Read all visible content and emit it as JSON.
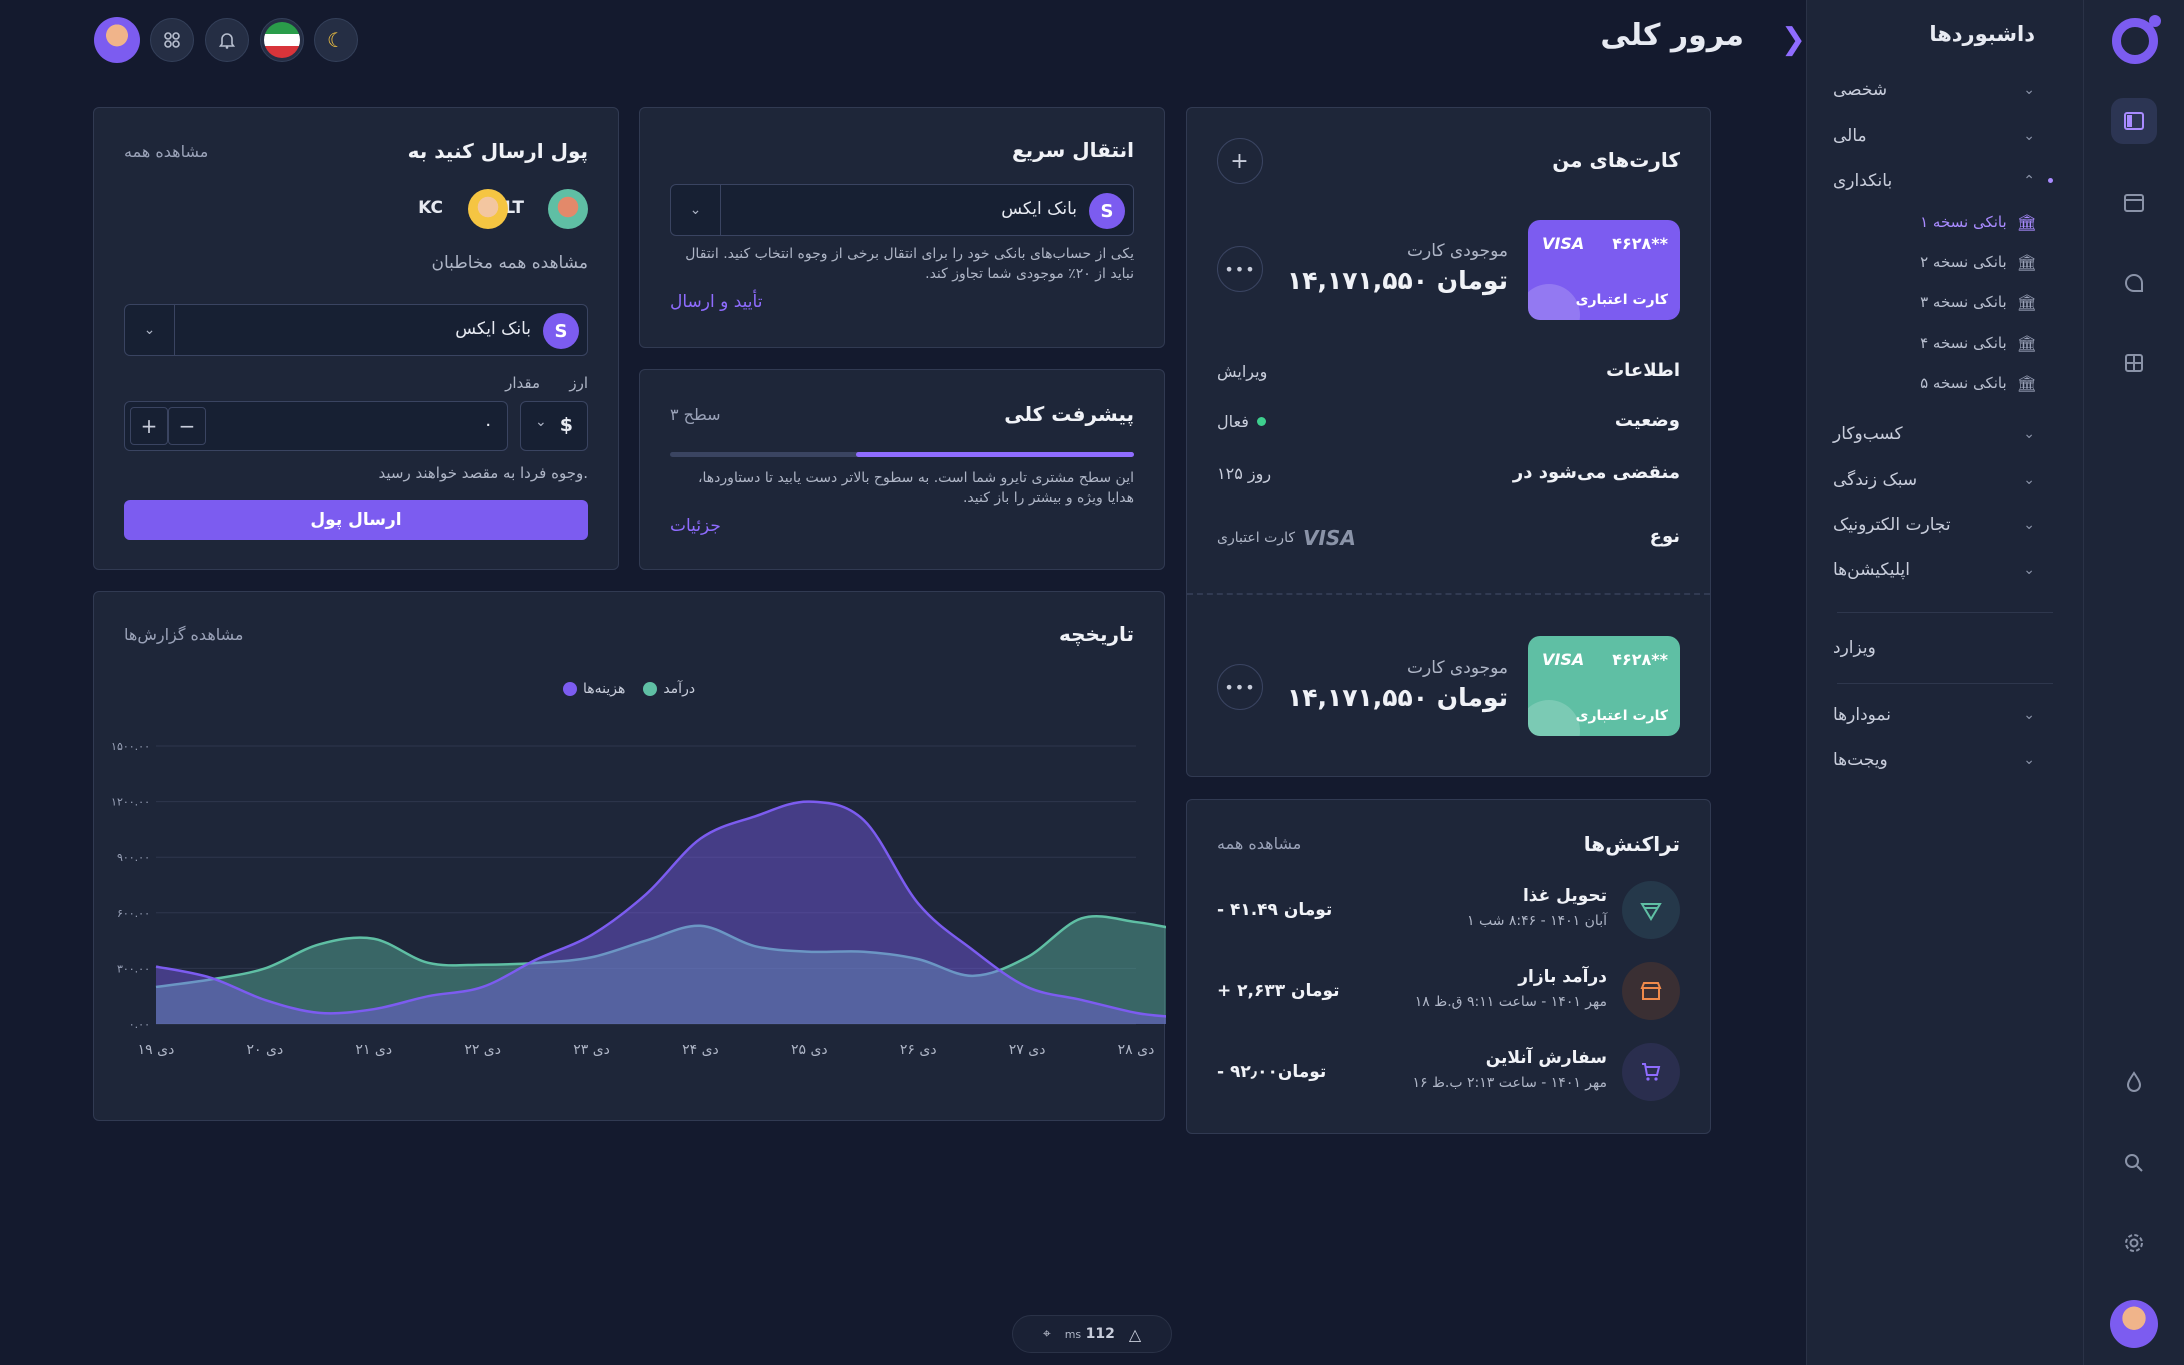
{
  "sidebar": {
    "title": "داشبوردها",
    "items": [
      {
        "label": "شخصی"
      },
      {
        "label": "مالی"
      },
      {
        "label": "بانکداری"
      }
    ],
    "banking_sub": [
      {
        "label": "بانکی نسخه ۱"
      },
      {
        "label": "بانکی نسخه ۲"
      },
      {
        "label": "بانکی نسخه ۳"
      },
      {
        "label": "بانکی نسخه ۴"
      },
      {
        "label": "بانکی نسخه ۵"
      }
    ],
    "items2": [
      {
        "label": "کسب‌وکار"
      },
      {
        "label": "سبک زندگی"
      },
      {
        "label": "تجارت الکترونیک"
      },
      {
        "label": "اپلیکیشن‌ها"
      }
    ],
    "wizard": "ویزارد",
    "charts": "نمودارها",
    "widgets": "ویجت‌ها"
  },
  "header": {
    "title": "مرور کلی"
  },
  "my_cards": {
    "title": "کارت‌های من",
    "cards": [
      {
        "number": "۴۶۲۸**",
        "brand": "VISA",
        "type": "کارت اعتباری",
        "balance_label": "موجودی کارت",
        "balance": "۱۴,۱۷۱,۵۵۰ تومان",
        "color": "#7c5cf0"
      },
      {
        "number": "۴۶۲۸**",
        "brand": "VISA",
        "type": "کارت اعتباری",
        "balance_label": "موجودی کارت",
        "balance": "۱۴,۱۷۱,۵۵۰ تومان",
        "color": "#5fbfa4"
      }
    ],
    "info_label": "اطلاعات",
    "edit": "ویرایش",
    "status_label": "وضعیت",
    "status_value": "فعال",
    "expires_label": "منقضی می‌شود در",
    "expires_value": "۱۲۵ روز",
    "type_label": "نوع",
    "type_value": "کارت اعتباری",
    "type_brand": "VISA"
  },
  "quick_transfer": {
    "title": "انتقال سریع",
    "bank": "بانک ایکس",
    "description": "یکی از حساب‌های بانکی خود را برای انتقال برخی از وجوه انتخاب کنید. انتقال نباید از ۲۰٪ موجودی شما تجاوز کند.",
    "confirm": "تأیید و ارسال"
  },
  "progress": {
    "title": "پیشرفت کلی",
    "level": "سطح ۳",
    "percent": 60,
    "description": "این سطح مشتری تایرو شما است. به سطوح بالاتر دست یابید تا دستاوردها، هدایا ویژه و بیشتر را باز کنید.",
    "details": "جزئیات"
  },
  "send_money": {
    "title": "پول ارسال کنید به",
    "view_all": "مشاهده همه",
    "contacts": [
      "LT",
      "KC"
    ],
    "view_contacts": "مشاهده همه مخاطبان",
    "bank": "بانک ایکس",
    "currency_label": "ارز",
    "currency": "$",
    "amount_label": "مقدار",
    "amount": "۰",
    "note": "وجوه فردا به مقصد خواهند رسید.",
    "button": "ارسال پول"
  },
  "history": {
    "title": "تاریخچه",
    "view_reports": "مشاهده گزارش‌ها"
  },
  "chart_data": {
    "type": "area",
    "categories": [
      "دی ۱۹",
      "دی ۲۰",
      "دی ۲۱",
      "دی ۲۲",
      "دی ۲۳",
      "دی ۲۴",
      "دی ۲۵",
      "دی ۲۶",
      "دی ۲۷",
      "دی ۲۸"
    ],
    "x": [
      0,
      0.5,
      1,
      1.5,
      2,
      2.5,
      3,
      3.5,
      4,
      4.5,
      5,
      5.5,
      6,
      6.5,
      7,
      7.5,
      8,
      8.5,
      9,
      9.3
    ],
    "series": [
      {
        "name": "هزینه‌ها",
        "color": "#7c5cf0",
        "values": [
          310,
          250,
          130,
          60,
          80,
          150,
          200,
          350,
          480,
          700,
          1000,
          1120,
          1200,
          1100,
          650,
          400,
          200,
          130,
          60,
          40
        ]
      },
      {
        "name": "درآمد",
        "color": "#5fbfa4",
        "values": [
          200,
          240,
          300,
          430,
          460,
          330,
          320,
          330,
          360,
          450,
          530,
          420,
          390,
          390,
          350,
          260,
          360,
          570,
          550,
          520
        ]
      }
    ],
    "yticks": [
      "۰.۰۰",
      "۳۰۰.۰۰",
      "۶۰۰.۰۰",
      "۹۰۰.۰۰",
      "۱۲۰۰.۰۰",
      "۱۵۰۰.۰۰"
    ],
    "ylim": [
      0,
      1500
    ],
    "legend": "top-center",
    "grid": true
  },
  "transactions": {
    "title": "تراکنش‌ها",
    "view_all": "مشاهده همه",
    "items": [
      {
        "title": "تحویل غذا",
        "date": "۱ آبان ۱۴۰۱ - ۸:۴۶ شب",
        "amount": "- ۴۱.۴۹ تومان",
        "icon": "pizza-icon",
        "color": "#5fbfa4"
      },
      {
        "title": "درآمد بازار",
        "date": "۱۸ مهر ۱۴۰۱ - ساعت ۹:۱۱ ق.ظ",
        "amount": "+ ۲,۶۳۳ تومان",
        "icon": "store-icon",
        "color": "#f08a4b"
      },
      {
        "title": "سفارش آنلاین",
        "date": "۱۶ مهر ۱۴۰۱ - ساعت ۲:۱۳ ب.ظ",
        "amount": "- ۹۲٫۰۰تومان",
        "icon": "cart-icon",
        "color": "#7c5cf0"
      }
    ]
  },
  "devbar": {
    "ms": "112",
    "unit": "ms"
  }
}
